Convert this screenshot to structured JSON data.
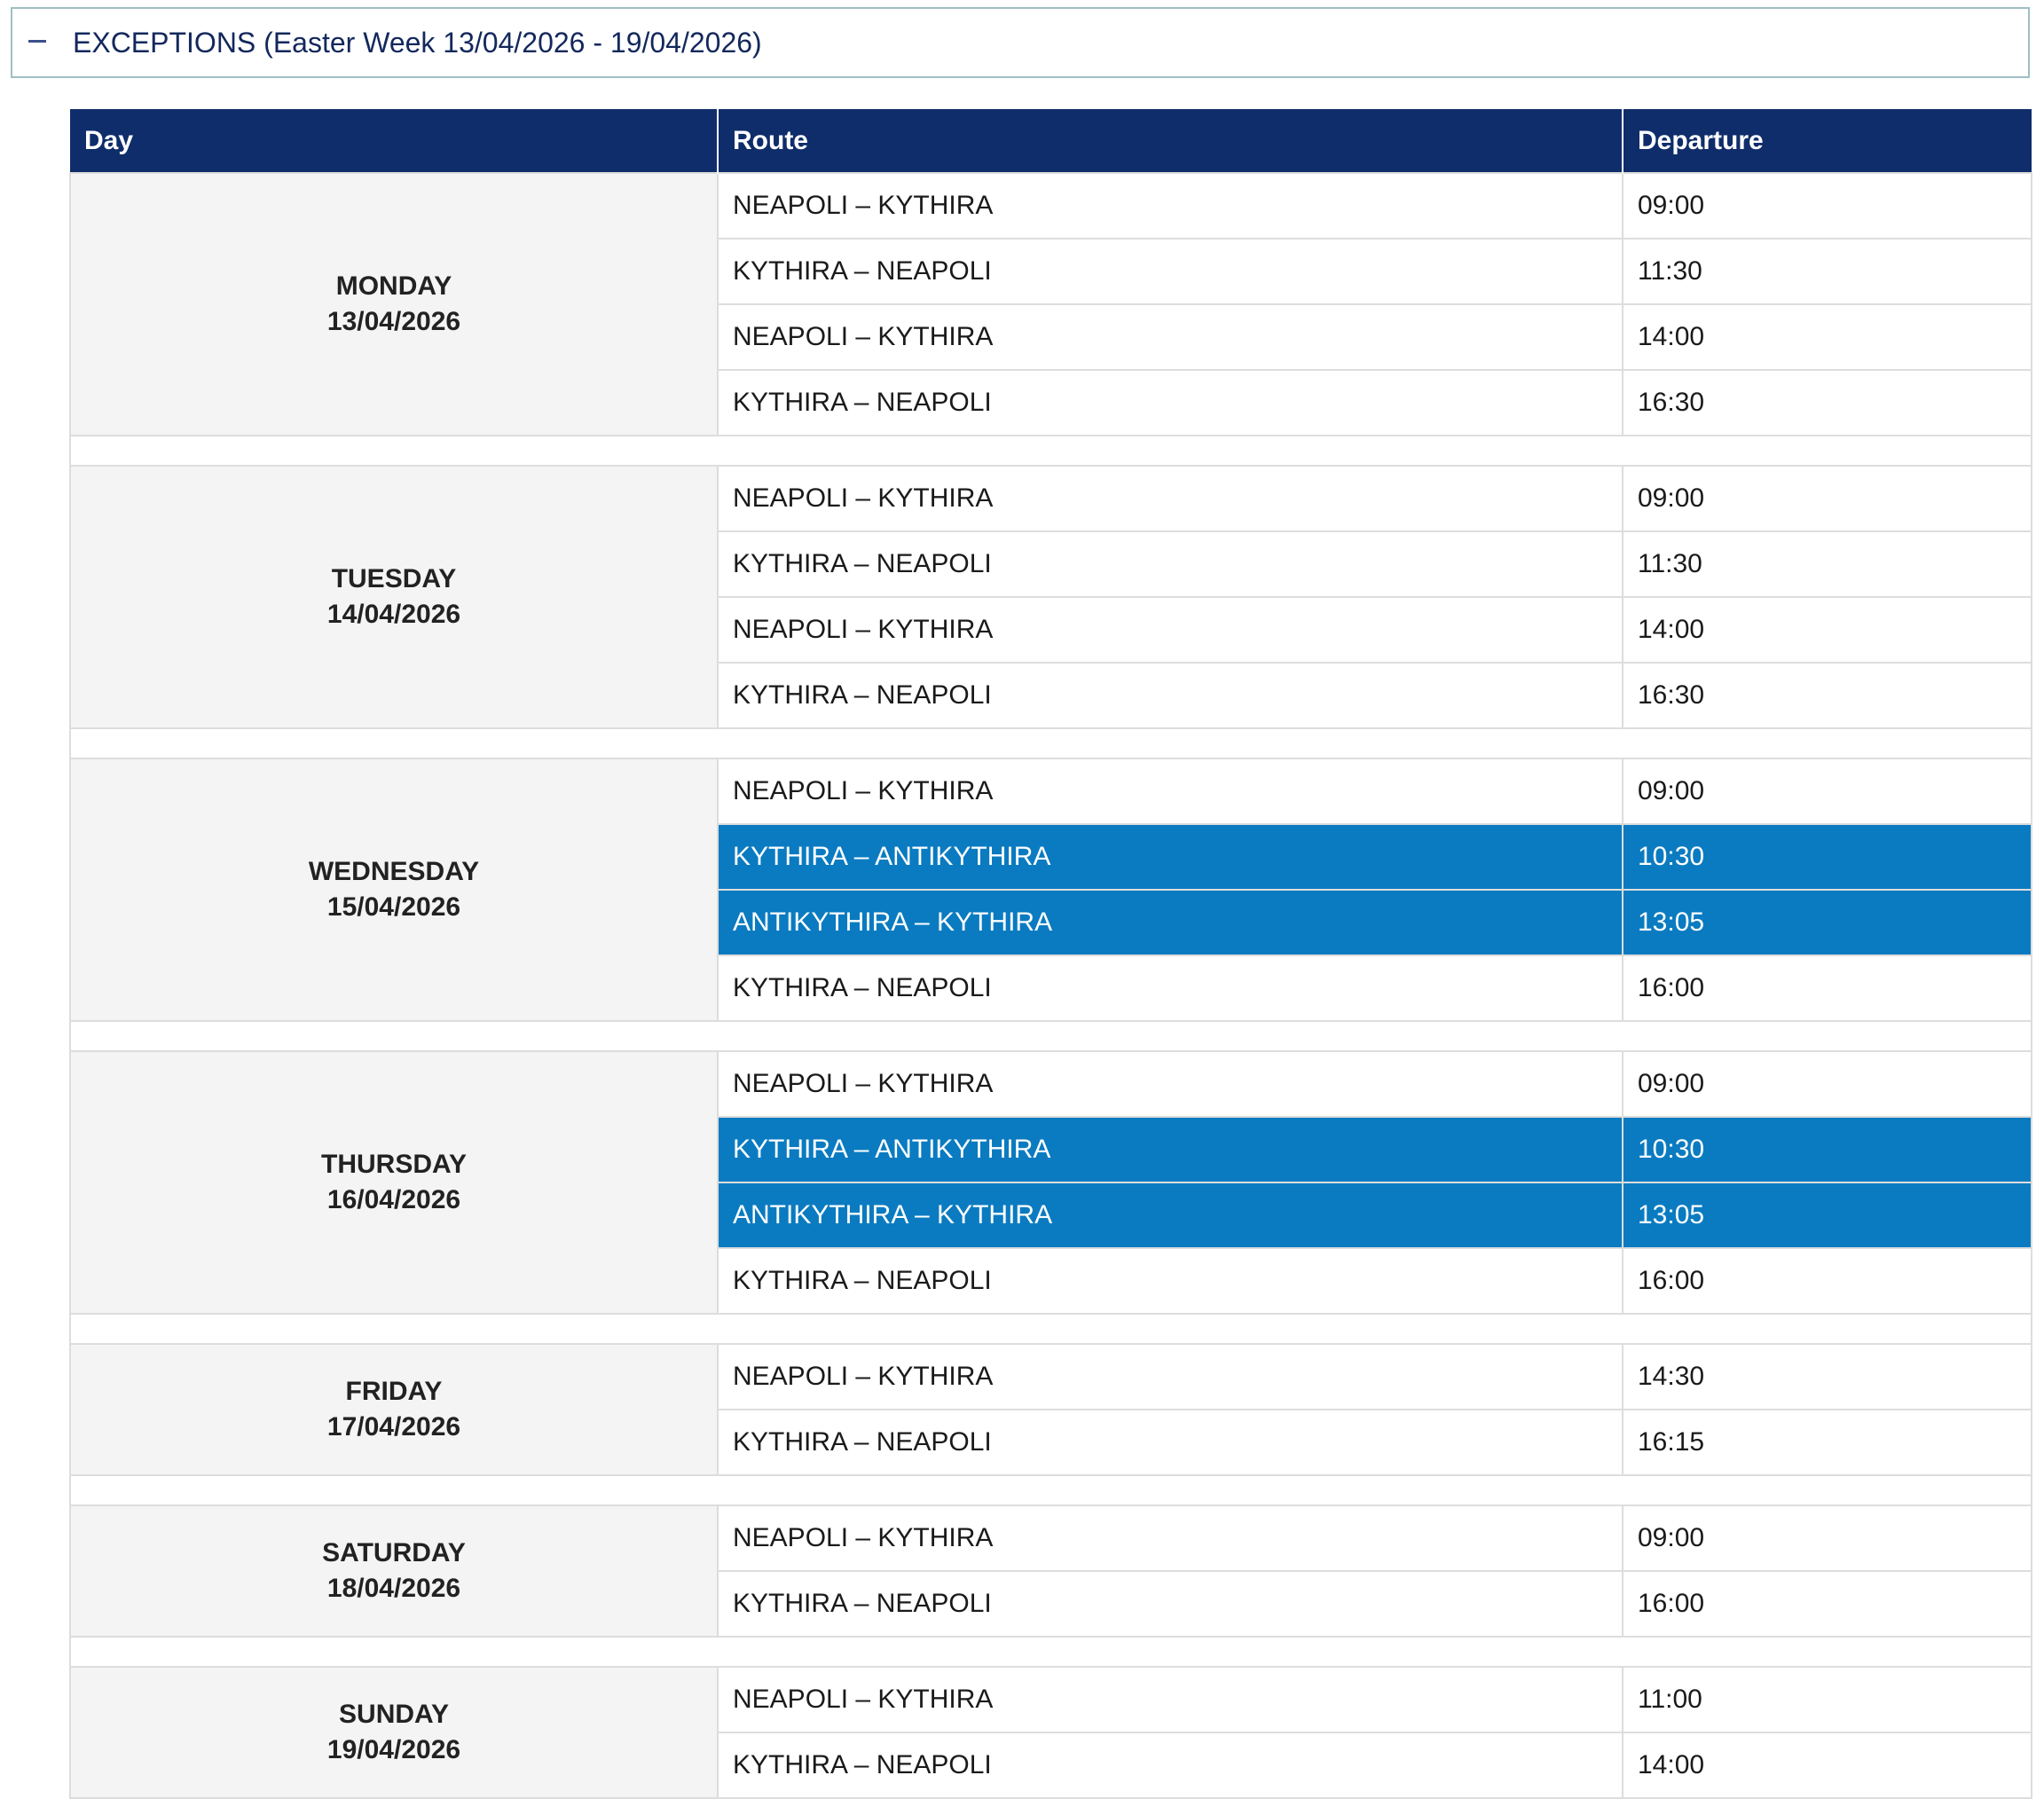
{
  "accordion": {
    "toggle_icon": "minus-icon",
    "title": "EXCEPTIONS (Easter Week 13/04/2026 - 19/04/2026)"
  },
  "table": {
    "headers": [
      "Day",
      "Route",
      "Departure"
    ],
    "colors": {
      "header_bg": "#0f2d6b",
      "highlight_bg": "#0a7bc1",
      "day_cell_bg": "#f4f4f4"
    },
    "days": [
      {
        "day": "MONDAY",
        "date": "13/04/2026",
        "trips": [
          {
            "route": "NEAPOLI – KYTHIRA",
            "departure": "09:00",
            "highlight": false
          },
          {
            "route": "KYTHIRA – NEAPOLI",
            "departure": "11:30",
            "highlight": false
          },
          {
            "route": "NEAPOLI – KYTHIRA",
            "departure": "14:00",
            "highlight": false
          },
          {
            "route": "KYTHIRA – NEAPOLI",
            "departure": "16:30",
            "highlight": false
          }
        ]
      },
      {
        "day": "TUESDAY",
        "date": "14/04/2026",
        "trips": [
          {
            "route": "NEAPOLI – KYTHIRA",
            "departure": "09:00",
            "highlight": false
          },
          {
            "route": "KYTHIRA – NEAPOLI",
            "departure": "11:30",
            "highlight": false
          },
          {
            "route": "NEAPOLI – KYTHIRA",
            "departure": "14:00",
            "highlight": false
          },
          {
            "route": "KYTHIRA – NEAPOLI",
            "departure": "16:30",
            "highlight": false
          }
        ]
      },
      {
        "day": "WEDNESDAY",
        "date": "15/04/2026",
        "trips": [
          {
            "route": "NEAPOLI – KYTHIRA",
            "departure": "09:00",
            "highlight": false
          },
          {
            "route": "KYTHIRA – ANTIKYTHIRA",
            "departure": "10:30",
            "highlight": true
          },
          {
            "route": "ANTIKYTHIRA – KYTHIRA",
            "departure": "13:05",
            "highlight": true
          },
          {
            "route": "KYTHIRA – NEAPOLI",
            "departure": "16:00",
            "highlight": false
          }
        ]
      },
      {
        "day": "THURSDAY",
        "date": "16/04/2026",
        "trips": [
          {
            "route": "NEAPOLI – KYTHIRA",
            "departure": "09:00",
            "highlight": false
          },
          {
            "route": "KYTHIRA – ANTIKYTHIRA",
            "departure": "10:30",
            "highlight": true
          },
          {
            "route": "ANTIKYTHIRA – KYTHIRA",
            "departure": "13:05",
            "highlight": true
          },
          {
            "route": "KYTHIRA – NEAPOLI",
            "departure": "16:00",
            "highlight": false
          }
        ]
      },
      {
        "day": "FRIDAY",
        "date": "17/04/2026",
        "trips": [
          {
            "route": "NEAPOLI – KYTHIRA",
            "departure": "14:30",
            "highlight": false
          },
          {
            "route": "KYTHIRA – NEAPOLI",
            "departure": "16:15",
            "highlight": false
          }
        ]
      },
      {
        "day": "SATURDAY",
        "date": "18/04/2026",
        "trips": [
          {
            "route": "NEAPOLI – KYTHIRA",
            "departure": "09:00",
            "highlight": false
          },
          {
            "route": "KYTHIRA – NEAPOLI",
            "departure": "16:00",
            "highlight": false
          }
        ]
      },
      {
        "day": "SUNDAY",
        "date": "19/04/2026",
        "trips": [
          {
            "route": "NEAPOLI – KYTHIRA",
            "departure": "11:00",
            "highlight": false
          },
          {
            "route": "KYTHIRA – NEAPOLI",
            "departure": "14:00",
            "highlight": false
          }
        ]
      }
    ]
  }
}
